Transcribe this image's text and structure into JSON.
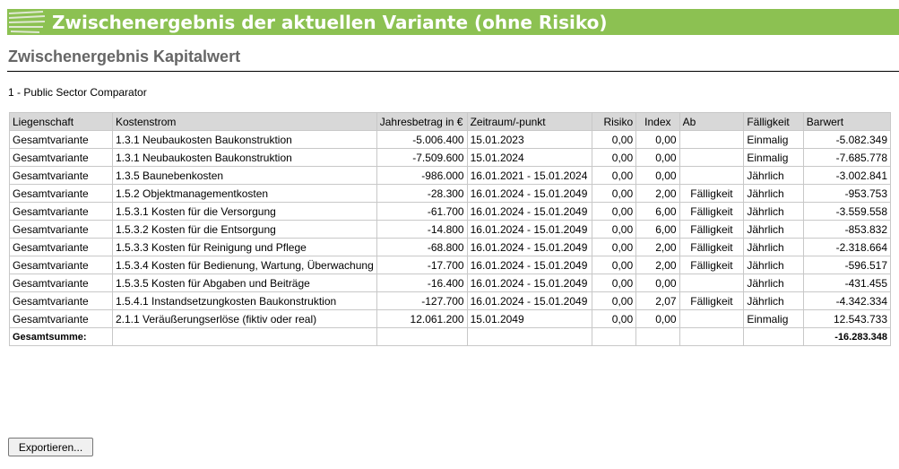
{
  "header": {
    "title": "Zwischenergebnis der aktuellen Variante (ohne Risiko)"
  },
  "section_title": "Zwischenergebnis Kapitalwert",
  "subtitle": "1 - Public Sector Comparator",
  "table": {
    "columns": [
      "Liegenschaft",
      "Kostenstrom",
      "Jahresbetrag in €",
      "Zeitraum/-punkt",
      "Risiko",
      "Index",
      "Ab",
      "Fälligkeit",
      "Barwert"
    ],
    "rows": [
      [
        "Gesamtvariante",
        "1.3.1 Neubaukosten Baukonstruktion",
        "-5.006.400",
        "15.01.2023",
        "0,00",
        "0,00",
        null,
        "Einmalig",
        "-5.082.349"
      ],
      [
        "Gesamtvariante",
        "1.3.1 Neubaukosten Baukonstruktion",
        "-7.509.600",
        "15.01.2024",
        "0,00",
        "0,00",
        null,
        "Einmalig",
        "-7.685.778"
      ],
      [
        "Gesamtvariante",
        "1.3.5 Baunebenkosten",
        "-986.000",
        "16.01.2021 - 15.01.2024",
        "0,00",
        "0,00",
        null,
        "Jährlich",
        "-3.002.841"
      ],
      [
        "Gesamtvariante",
        "1.5.2 Objektmanagementkosten",
        "-28.300",
        "16.01.2024 - 15.01.2049",
        "0,00",
        "2,00",
        "Fälligkeit",
        "Jährlich",
        "-953.753"
      ],
      [
        "Gesamtvariante",
        "1.5.3.1 Kosten für die Versorgung",
        "-61.700",
        "16.01.2024 - 15.01.2049",
        "0,00",
        "6,00",
        "Fälligkeit",
        "Jährlich",
        "-3.559.558"
      ],
      [
        "Gesamtvariante",
        "1.5.3.2 Kosten für die Entsorgung",
        "-14.800",
        "16.01.2024 - 15.01.2049",
        "0,00",
        "6,00",
        "Fälligkeit",
        "Jährlich",
        "-853.832"
      ],
      [
        "Gesamtvariante",
        "1.5.3.3 Kosten für Reinigung und Pflege",
        "-68.800",
        "16.01.2024 - 15.01.2049",
        "0,00",
        "2,00",
        "Fälligkeit",
        "Jährlich",
        "-2.318.664"
      ],
      [
        "Gesamtvariante",
        "1.5.3.4 Kosten für Bedienung, Wartung, Überwachung",
        "-17.700",
        "16.01.2024 - 15.01.2049",
        "0,00",
        "2,00",
        "Fälligkeit",
        "Jährlich",
        "-596.517"
      ],
      [
        "Gesamtvariante",
        "1.5.3.5 Kosten für Abgaben und Beiträge",
        "-16.400",
        "16.01.2024 - 15.01.2049",
        "0,00",
        "0,00",
        null,
        "Jährlich",
        "-431.455"
      ],
      [
        "Gesamtvariante",
        "1.5.4.1 Instandsetzungkosten Baukonstruktion",
        "-127.700",
        "16.01.2024 - 15.01.2049",
        "0,00",
        "2,07",
        "Fälligkeit",
        "Jährlich",
        "-4.342.334"
      ],
      [
        "Gesamtvariante",
        "2.1.1 Veräußerungserlöse (fiktiv oder real)",
        "12.061.200",
        "15.01.2049",
        "0,00",
        "0,00",
        null,
        "Einmalig",
        "12.543.733"
      ]
    ],
    "total": {
      "label": "Gesamtsumme:",
      "value": "-16.283.348"
    }
  },
  "button": "Exportieren..."
}
